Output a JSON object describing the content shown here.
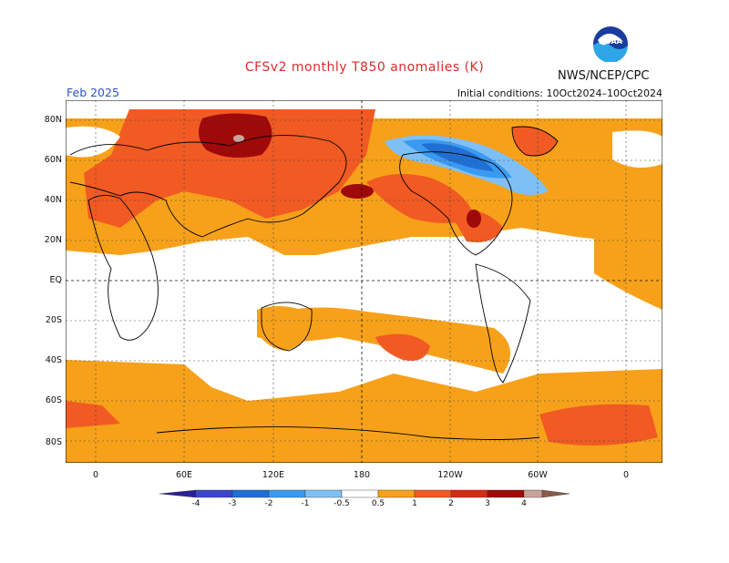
{
  "title": "CFSv2 monthly T850 anomalies (K)",
  "agency": "NWS/NCEP/CPC",
  "logo_text": "NOAA",
  "month": "Feb 2025",
  "init": "Initial conditions: 10Oct2024–10Oct2024",
  "lat_labels": [
    "80N",
    "60N",
    "40N",
    "20N",
    "EQ",
    "20S",
    "40S",
    "60S",
    "80S"
  ],
  "lon_labels": [
    "0",
    "60E",
    "120E",
    "180",
    "120W",
    "60W",
    "0"
  ],
  "colorbar": {
    "labels": [
      "-4",
      "-3",
      "-2",
      "-1",
      "-0.5",
      "0.5",
      "1",
      "2",
      "3",
      "4"
    ],
    "colors": [
      "#2a1e9e",
      "#3c46c8",
      "#1f6fd4",
      "#3a9af0",
      "#7ec0f5",
      "#ffffff",
      "#f7a11a",
      "#f15a22",
      "#d82a12",
      "#9e0a0a",
      "#c8a39a",
      "#8a5a4a"
    ]
  },
  "palette": {
    "light_warm": "#f7a11a",
    "warm": "#f15a22",
    "hot": "#9e0a0a",
    "very_hot": "#c8a39a",
    "cool": "#7ec0f5",
    "cold": "#3a9af0",
    "colder": "#1f6fd4"
  }
}
